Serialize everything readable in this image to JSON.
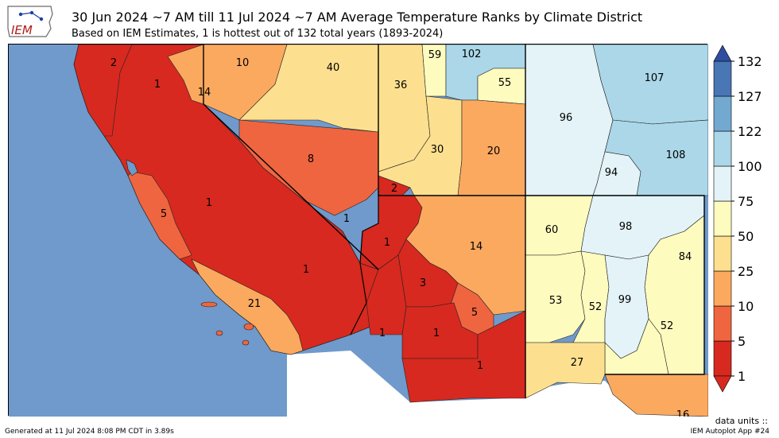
{
  "header": {
    "logo_text": "IEM",
    "title": "30 Jun 2024 ~7 AM till 11 Jul 2024 ~7 AM Average Temperature Ranks by Climate District",
    "subtitle": "Based on IEM Estimates, 1 is hottest out of 132 total years (1893-2024)"
  },
  "colorbar": {
    "ticks": [
      "1",
      "5",
      "10",
      "25",
      "50",
      "75",
      "100",
      "122",
      "127",
      "132"
    ],
    "colors": [
      "#d7291f",
      "#ef6540",
      "#fba95f",
      "#fde08f",
      "#fefbbf",
      "#e3f3f8",
      "#abd7e8",
      "#73a9d1",
      "#4976b4",
      "#2e4ea0"
    ]
  },
  "districts": {
    "ca_nw": "2",
    "ca_north_interior": "1",
    "ca_ne_14": "14",
    "ca_ne_10": "10",
    "nv_north_central": "40",
    "nv_central_west": "8",
    "ca_central_coast": "5",
    "ca_sj_valley": "1",
    "ca_sierra_south": "1",
    "ca_mojave": "1",
    "ca_south_coast": "21",
    "nv_south": "2",
    "az_nw": "1",
    "az_central": "3",
    "az_ne": "14",
    "az_se": "5",
    "az_sw": "1",
    "az_south": "1",
    "az_south_east": "1",
    "ut_nw": "36",
    "ut_north": "59",
    "ut_ne": "102",
    "ut_ne_south": "55",
    "ut_central": "30",
    "ut_se": "20",
    "co_west": "96",
    "co_ne": "107",
    "co_se": "108",
    "co_sw": "94",
    "nm_nw": "60",
    "nm_ne": "98",
    "nm_east": "84",
    "nm_cw": "53",
    "nm_central": "52",
    "nm_central_east": "99",
    "nm_se": "52",
    "nm_sw": "27",
    "tx_west": "16"
  },
  "footer": {
    "units_label": "data units ::",
    "generated": "Generated at 11 Jul 2024 8:08 PM CDT in 3.89s",
    "app": "IEM Autoplot App #24"
  }
}
